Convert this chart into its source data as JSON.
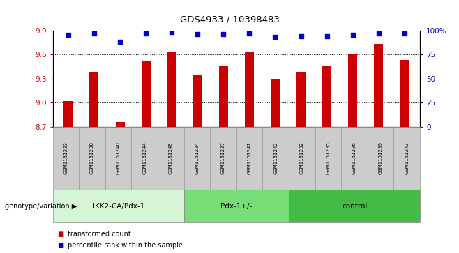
{
  "title": "GDS4933 / 10398483",
  "samples": [
    "GSM1151233",
    "GSM1151238",
    "GSM1151240",
    "GSM1151244",
    "GSM1151245",
    "GSM1151234",
    "GSM1151237",
    "GSM1151241",
    "GSM1151242",
    "GSM1151232",
    "GSM1151235",
    "GSM1151236",
    "GSM1151239",
    "GSM1151243"
  ],
  "bar_values": [
    9.02,
    9.38,
    8.76,
    9.52,
    9.63,
    9.35,
    9.46,
    9.63,
    9.3,
    9.38,
    9.46,
    9.6,
    9.73,
    9.53
  ],
  "percentile_values": [
    95,
    97,
    88,
    97,
    98,
    96,
    96,
    97,
    93,
    94,
    94,
    95,
    97,
    97
  ],
  "groups": [
    {
      "label": "IKK2-CA/Pdx-1",
      "start": 0,
      "end": 5,
      "color": "#d6f5d6"
    },
    {
      "label": "Pdx-1+/-",
      "start": 5,
      "end": 9,
      "color": "#77dd77"
    },
    {
      "label": "control",
      "start": 9,
      "end": 14,
      "color": "#44bb44"
    }
  ],
  "ylim_left": [
    8.7,
    9.9
  ],
  "ylim_right": [
    0,
    100
  ],
  "yticks_left": [
    8.7,
    9.0,
    9.3,
    9.6,
    9.9
  ],
  "yticks_right": [
    0,
    25,
    50,
    75,
    100
  ],
  "bar_color": "#cc0000",
  "dot_color": "#0000cc",
  "legend_bar": "transformed count",
  "legend_dot": "percentile rank within the sample",
  "right_axis_label_color": "#0000cc",
  "left_axis_label_color": "#cc0000",
  "sample_box_color": "#cccccc",
  "xlabel_group": "genotype/variation"
}
